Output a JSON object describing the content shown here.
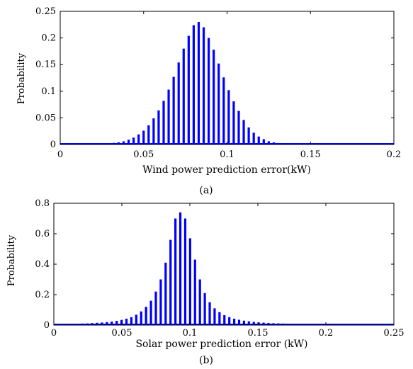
{
  "chart_data": [
    {
      "type": "bar",
      "panel_label": "(a)",
      "xlabel": "Wind power prediction error(kW)",
      "ylabel": "Probability",
      "xlim": [
        0,
        0.2
      ],
      "ylim": [
        0,
        0.25
      ],
      "xticks": [
        "0",
        "0.05",
        "0.1",
        "0.15",
        "0.2"
      ],
      "yticks": [
        "0",
        "0.05",
        "0.1",
        "0.15",
        "0.2",
        "0.25"
      ],
      "grid": false,
      "color": "#0000ff",
      "x": [
        0.002,
        0.005,
        0.008,
        0.011,
        0.014,
        0.017,
        0.02,
        0.023,
        0.026,
        0.029,
        0.032,
        0.035,
        0.038,
        0.041,
        0.044,
        0.047,
        0.05,
        0.053,
        0.056,
        0.059,
        0.062,
        0.065,
        0.068,
        0.071,
        0.074,
        0.077,
        0.08,
        0.083,
        0.086,
        0.089,
        0.092,
        0.095,
        0.098,
        0.101,
        0.104,
        0.107,
        0.11,
        0.113,
        0.116,
        0.119,
        0.122,
        0.125,
        0.128,
        0.131,
        0.134,
        0.137,
        0.14,
        0.143,
        0.146,
        0.149,
        0.152,
        0.155,
        0.158,
        0.161,
        0.164,
        0.167,
        0.17,
        0.173,
        0.176,
        0.179,
        0.182,
        0.185,
        0.188,
        0.191,
        0.194,
        0.197
      ],
      "values": [
        0.0,
        0.0,
        0.0,
        0.0,
        0.0,
        0.0,
        0.0,
        0.001,
        0.001,
        0.002,
        0.003,
        0.004,
        0.006,
        0.009,
        0.013,
        0.019,
        0.026,
        0.036,
        0.049,
        0.064,
        0.082,
        0.103,
        0.127,
        0.154,
        0.18,
        0.204,
        0.224,
        0.23,
        0.22,
        0.2,
        0.178,
        0.152,
        0.126,
        0.102,
        0.081,
        0.063,
        0.046,
        0.032,
        0.022,
        0.015,
        0.01,
        0.006,
        0.004,
        0.002,
        0.001,
        0.001,
        0.0,
        0.0,
        0.0,
        0.0,
        0.0,
        0.0,
        0.0,
        0.0,
        0.0,
        0.0,
        0.0,
        0.0,
        0.0,
        0.0,
        0.0,
        0.0,
        0.0,
        0.0,
        0.0,
        0.0
      ]
    },
    {
      "type": "bar",
      "panel_label": "(b)",
      "xlabel": "Solar power prediction error (kW)",
      "ylabel": "Probability",
      "xlim": [
        0,
        0.25
      ],
      "ylim": [
        0,
        0.8
      ],
      "xticks": [
        "0",
        "0.05",
        "0.1",
        "0.15",
        "0.2",
        "0.25"
      ],
      "yticks": [
        "0",
        "0.2",
        "0.4",
        "0.6",
        "0.8"
      ],
      "grid": false,
      "color": "#0000ff",
      "x": [
        0.003,
        0.0066,
        0.0102,
        0.0138,
        0.0174,
        0.021,
        0.0246,
        0.0282,
        0.0318,
        0.0354,
        0.039,
        0.0426,
        0.0462,
        0.0498,
        0.0534,
        0.057,
        0.0606,
        0.0642,
        0.0678,
        0.0714,
        0.075,
        0.0786,
        0.0822,
        0.0858,
        0.0894,
        0.093,
        0.0966,
        0.1002,
        0.1038,
        0.1074,
        0.111,
        0.1146,
        0.1182,
        0.1218,
        0.1254,
        0.129,
        0.1326,
        0.1362,
        0.1398,
        0.1434,
        0.147,
        0.1506,
        0.1542,
        0.1578,
        0.1614,
        0.165,
        0.1686,
        0.1722,
        0.1758,
        0.1794,
        0.183,
        0.1866,
        0.1902,
        0.1938,
        0.1974,
        0.201,
        0.2046,
        0.2082,
        0.2118,
        0.2154,
        0.219,
        0.2226,
        0.2262,
        0.2298,
        0.2334,
        0.237,
        0.2406,
        0.2442
      ],
      "values": [
        0.005,
        0.006,
        0.007,
        0.008,
        0.009,
        0.01,
        0.011,
        0.013,
        0.015,
        0.017,
        0.02,
        0.023,
        0.028,
        0.034,
        0.042,
        0.052,
        0.068,
        0.09,
        0.12,
        0.16,
        0.22,
        0.3,
        0.41,
        0.56,
        0.7,
        0.74,
        0.7,
        0.57,
        0.43,
        0.3,
        0.21,
        0.15,
        0.11,
        0.085,
        0.065,
        0.052,
        0.042,
        0.035,
        0.029,
        0.025,
        0.021,
        0.018,
        0.016,
        0.014,
        0.012,
        0.011,
        0.01,
        0.009,
        0.008,
        0.007,
        0.006,
        0.006,
        0.005,
        0.005,
        0.004,
        0.004,
        0.004,
        0.003,
        0.003,
        0.003,
        0.003,
        0.002,
        0.002,
        0.002,
        0.002,
        0.002,
        0.002,
        0.002
      ]
    }
  ]
}
